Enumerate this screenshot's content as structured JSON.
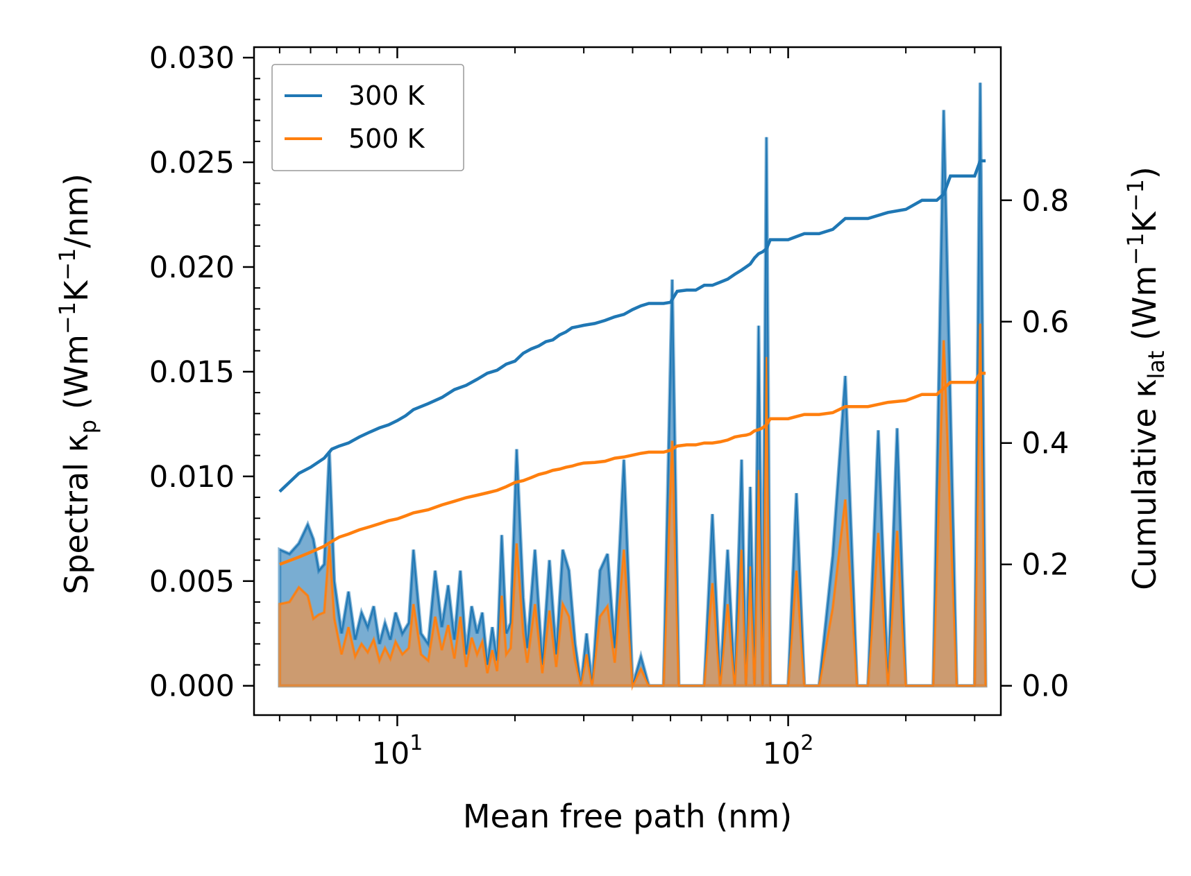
{
  "chart_data": {
    "type": "line",
    "xscale": "log",
    "xlabel": "Mean free path (nm)",
    "ylabel_left": {
      "main": "Spectral κ",
      "sub": "p",
      "rest": " (Wm",
      "sup1": "−1",
      "mid": "K",
      "sup2": "−1",
      "end": "/nm)"
    },
    "ylabel_right": {
      "main": "Cumulative κ",
      "sub": "lat",
      "rest": " (Wm",
      "sup1": "−1",
      "mid": "K",
      "sup2": "−1",
      "end": ")"
    },
    "xlim": [
      4.3,
      350
    ],
    "ylim_left": [
      -0.0014,
      0.0305
    ],
    "ylim_right": [
      -0.0483,
      1.0523
    ],
    "x_ticks": [
      {
        "value": 10,
        "base": "10",
        "exp": "1"
      },
      {
        "value": 100,
        "base": "10",
        "exp": "2"
      }
    ],
    "y_left_ticks": [
      "0.000",
      "0.005",
      "0.010",
      "0.015",
      "0.020",
      "0.025",
      "0.030"
    ],
    "y_left_tick_values": [
      0,
      0.005,
      0.01,
      0.015,
      0.02,
      0.025,
      0.03
    ],
    "y_right_ticks": [
      "0.0",
      "0.2",
      "0.4",
      "0.6",
      "0.8"
    ],
    "y_right_tick_values": [
      0,
      0.2,
      0.4,
      0.6,
      0.8
    ],
    "legend": {
      "position": "top-left",
      "entries": [
        "300 K",
        "500 K"
      ]
    },
    "colors": {
      "blue": "#1f77b4",
      "orange": "#ff7f0e",
      "blue_fill": "#1f77b4",
      "orange_fill": "#e8954f"
    },
    "spectral": {
      "x": [
        5.0,
        5.3,
        5.6,
        5.9,
        6.1,
        6.3,
        6.5,
        6.7,
        6.9,
        7.2,
        7.5,
        7.8,
        8.1,
        8.4,
        8.7,
        9.0,
        9.3,
        9.6,
        9.9,
        10.3,
        10.7,
        11.0,
        11.5,
        12.0,
        12.5,
        13.0,
        13.5,
        14.0,
        14.5,
        15.0,
        15.5,
        16.0,
        16.5,
        17.0,
        17.5,
        18.0,
        18.5,
        19.0,
        19.5,
        20.2,
        21.0,
        21.5,
        22.5,
        23.5,
        24.5,
        25.5,
        26.5,
        27.5,
        28.5,
        29.5,
        30.5,
        31.5,
        33.0,
        34.5,
        36.0,
        38.0,
        40.0,
        42.0,
        44.0,
        46.0,
        48.0,
        50.5,
        52.5,
        55.0,
        58.0,
        61.0,
        64.0,
        67.0,
        70.0,
        73.0,
        76.0,
        78.0,
        80.0,
        82.0,
        84.0,
        86.0,
        88.0,
        90.0,
        92.0,
        96.0,
        100.0,
        105.0,
        110.0,
        120.0,
        130.0,
        140.0,
        150.0,
        160.0,
        170.0,
        180.0,
        190.0,
        200.0,
        215.0,
        235.0,
        250.0,
        270.0,
        300.0,
        310.0,
        320.0
      ],
      "k300": [
        0.0065,
        0.0063,
        0.0068,
        0.0077,
        0.007,
        0.0055,
        0.0058,
        0.0112,
        0.005,
        0.0025,
        0.0045,
        0.0022,
        0.0035,
        0.0028,
        0.0038,
        0.002,
        0.003,
        0.0022,
        0.0035,
        0.0025,
        0.003,
        0.0065,
        0.0025,
        0.002,
        0.0055,
        0.0028,
        0.0048,
        0.0022,
        0.0055,
        0.0015,
        0.0038,
        0.0025,
        0.0035,
        0.001,
        0.0028,
        0.0012,
        0.0072,
        0.0025,
        0.003,
        0.0113,
        0.0042,
        0.0018,
        0.0065,
        0.001,
        0.006,
        0.0015,
        0.0065,
        0.0055,
        0.002,
        0.0,
        0.0025,
        0.0,
        0.0055,
        0.0063,
        0.0018,
        0.0108,
        0.0,
        0.0014,
        0.0,
        0.0,
        0.0,
        0.0194,
        0.0,
        0.0,
        0.0,
        0.0,
        0.0082,
        0.0,
        0.0065,
        0.0,
        0.0108,
        0.0,
        0.0095,
        0.0,
        0.0172,
        0.0,
        0.0262,
        0.0,
        0.0,
        0.0,
        0.0,
        0.0092,
        0.0,
        0.0,
        0.0062,
        0.0148,
        0.0,
        0.0,
        0.0122,
        0.0,
        0.0123,
        0.0,
        0.0,
        0.0,
        0.0275,
        0.0,
        0.0,
        0.0288,
        0.0
      ],
      "k500": [
        0.0039,
        0.004,
        0.0047,
        0.0043,
        0.0032,
        0.0034,
        0.0035,
        0.0067,
        0.0032,
        0.0015,
        0.0028,
        0.0014,
        0.002,
        0.0016,
        0.0022,
        0.0012,
        0.0018,
        0.0013,
        0.0021,
        0.0015,
        0.0018,
        0.0039,
        0.0015,
        0.0012,
        0.0033,
        0.0017,
        0.0029,
        0.0013,
        0.0033,
        0.0009,
        0.0023,
        0.0015,
        0.0021,
        0.0006,
        0.0017,
        0.0007,
        0.0043,
        0.0015,
        0.0018,
        0.0068,
        0.0025,
        0.0011,
        0.0039,
        0.0006,
        0.0036,
        0.0009,
        0.0039,
        0.0033,
        0.0012,
        0.0,
        0.0015,
        0.0,
        0.0033,
        0.0038,
        0.0011,
        0.0065,
        0.0,
        0.0008,
        0.0,
        0.0,
        0.0,
        0.0117,
        0.0,
        0.0,
        0.0,
        0.0,
        0.0049,
        0.0,
        0.0039,
        0.0,
        0.0065,
        0.0,
        0.0057,
        0.0,
        0.0103,
        0.0,
        0.0157,
        0.0,
        0.0,
        0.0,
        0.0,
        0.0055,
        0.0,
        0.0,
        0.0037,
        0.0089,
        0.0,
        0.0,
        0.0073,
        0.0,
        0.0074,
        0.0,
        0.0,
        0.0,
        0.0165,
        0.0,
        0.0,
        0.0173,
        0.0
      ]
    },
    "cumulative": {
      "x": [
        5.0,
        5.6,
        6.0,
        6.5,
        6.8,
        7.1,
        7.5,
        8.0,
        8.5,
        9.0,
        9.5,
        10.0,
        10.5,
        11.0,
        12.0,
        13.0,
        14.0,
        15.0,
        16.0,
        17.0,
        18.0,
        19.0,
        20.0,
        21.0,
        22.0,
        23.0,
        24.0,
        25.0,
        26.0,
        27.0,
        28.0,
        29.0,
        30.0,
        32.0,
        34.0,
        36.0,
        38.0,
        40.0,
        42.0,
        44.0,
        46.0,
        48.0,
        50.0,
        52.0,
        55.0,
        58.0,
        61.0,
        64.0,
        67.0,
        70.0,
        73.0,
        76.0,
        78.0,
        80.0,
        82.0,
        84.0,
        86.0,
        88.0,
        90.0,
        95.0,
        100.0,
        110.0,
        120.0,
        130.0,
        140.0,
        160.0,
        180.0,
        200.0,
        220.0,
        240.0,
        250.0,
        260.0,
        280.0,
        300.0,
        310.0,
        320.0
      ],
      "c300": [
        0.32,
        0.35,
        0.36,
        0.375,
        0.39,
        0.395,
        0.4,
        0.41,
        0.418,
        0.425,
        0.43,
        0.437,
        0.445,
        0.455,
        0.465,
        0.475,
        0.488,
        0.495,
        0.505,
        0.515,
        0.52,
        0.53,
        0.535,
        0.548,
        0.555,
        0.56,
        0.567,
        0.57,
        0.578,
        0.583,
        0.59,
        0.592,
        0.594,
        0.597,
        0.602,
        0.608,
        0.612,
        0.62,
        0.626,
        0.63,
        0.63,
        0.63,
        0.632,
        0.65,
        0.652,
        0.652,
        0.66,
        0.66,
        0.665,
        0.67,
        0.678,
        0.685,
        0.69,
        0.695,
        0.705,
        0.712,
        0.715,
        0.72,
        0.735,
        0.735,
        0.735,
        0.745,
        0.745,
        0.752,
        0.77,
        0.77,
        0.78,
        0.785,
        0.8,
        0.8,
        0.81,
        0.84,
        0.84,
        0.84,
        0.865,
        0.865
      ],
      "c500": [
        0.2,
        0.212,
        0.22,
        0.23,
        0.238,
        0.245,
        0.25,
        0.257,
        0.262,
        0.267,
        0.272,
        0.275,
        0.28,
        0.285,
        0.29,
        0.298,
        0.304,
        0.31,
        0.314,
        0.318,
        0.322,
        0.328,
        0.335,
        0.338,
        0.343,
        0.348,
        0.351,
        0.355,
        0.357,
        0.36,
        0.362,
        0.365,
        0.367,
        0.368,
        0.37,
        0.375,
        0.377,
        0.38,
        0.383,
        0.385,
        0.385,
        0.385,
        0.388,
        0.395,
        0.397,
        0.397,
        0.4,
        0.4,
        0.402,
        0.405,
        0.41,
        0.412,
        0.413,
        0.415,
        0.42,
        0.422,
        0.425,
        0.43,
        0.44,
        0.44,
        0.44,
        0.447,
        0.447,
        0.45,
        0.46,
        0.46,
        0.467,
        0.47,
        0.48,
        0.48,
        0.49,
        0.5,
        0.5,
        0.5,
        0.515,
        0.515
      ]
    }
  }
}
